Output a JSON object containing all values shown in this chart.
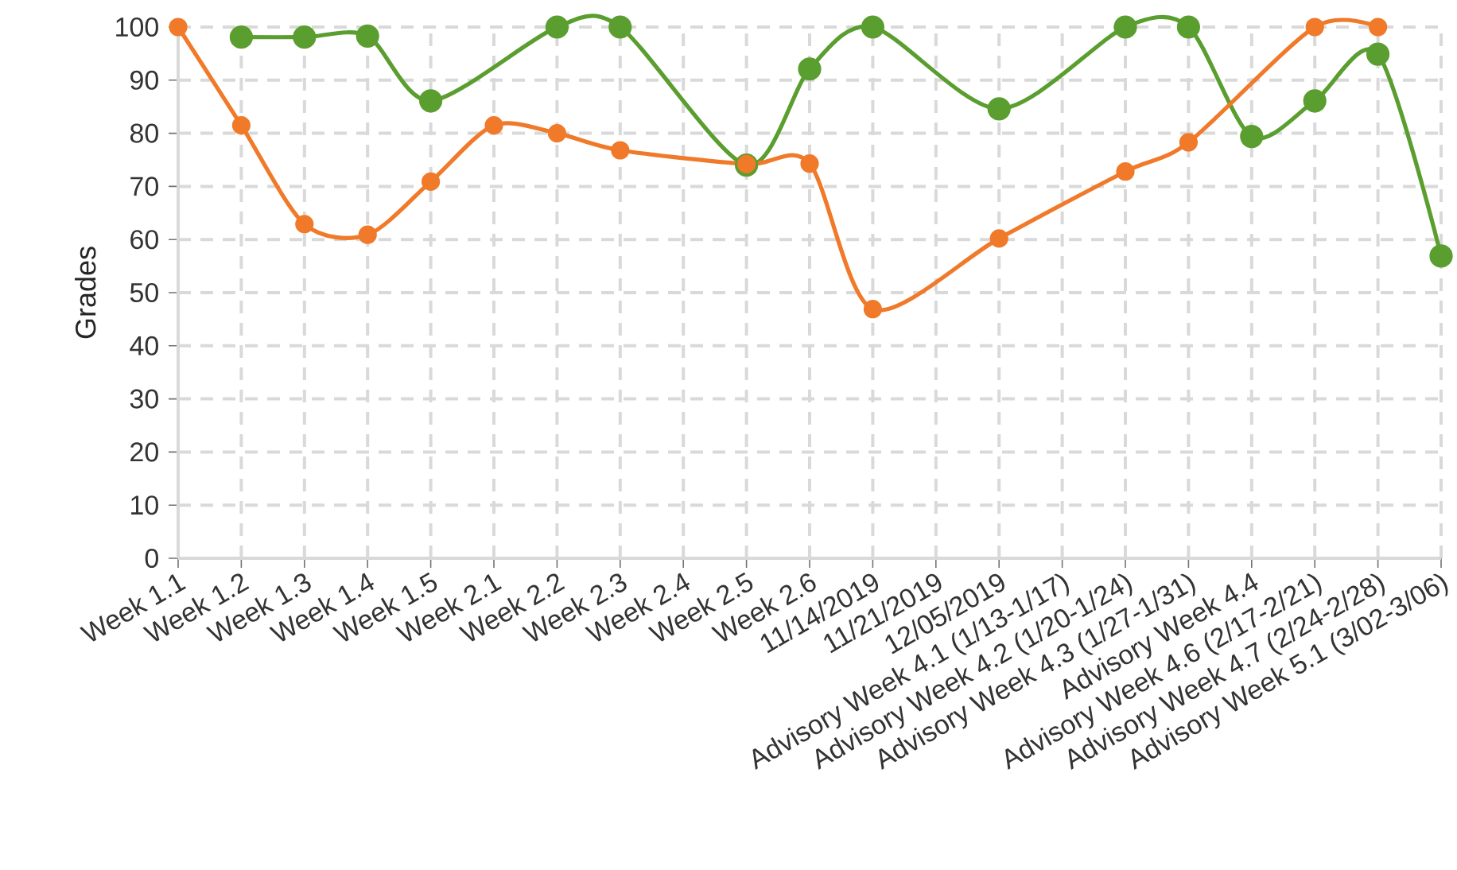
{
  "chart_data": {
    "type": "line",
    "ylabel": "Grades",
    "categories": [
      "Week 1.1",
      "Week 1.2",
      "Week 1.3",
      "Week 1.4",
      "Week 1.5",
      "Week 2.1",
      "Week 2.2",
      "Week 2.3",
      "Week 2.4",
      "Week 2.5",
      "Week 2.6",
      "11/14/2019",
      "11/21/2019",
      "12/05/2019",
      "Advisory Week 4.1 (1/13-1/17)",
      "Advisory Week 4.2 (1/20-1/24)",
      "Advisory Week 4.3 (1/27-1/31)",
      "Advisory Week 4.4",
      "Advisory Week 4.6 (2/17-2/21)",
      "Advisory Week 4.7 (2/24-2/28)",
      "Advisory Week 5.1 (3/02-3/06)"
    ],
    "series": [
      {
        "color": "#f07a2a",
        "values": [
          100,
          81.5,
          62.9,
          60.9,
          70.9,
          81.5,
          80,
          76.8,
          null,
          74.2,
          74.3,
          46.9,
          null,
          60.2,
          null,
          72.8,
          78.3,
          null,
          100,
          100,
          null
        ]
      },
      {
        "color": "#5a9e2f",
        "values": [
          null,
          98.1,
          98.1,
          98.3,
          86.1,
          null,
          100,
          100,
          null,
          74,
          92.1,
          100,
          null,
          84.6,
          null,
          100,
          100,
          79.4,
          86.1,
          94.9,
          56.9
        ]
      }
    ],
    "ylim": [
      0,
      100
    ],
    "yticks": [
      0,
      10,
      20,
      30,
      40,
      50,
      60,
      70,
      80,
      90,
      100
    ],
    "grid": true,
    "marker": "circle",
    "line_style": "solid"
  }
}
